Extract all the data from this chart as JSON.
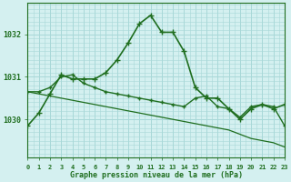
{
  "line1": [
    1029.85,
    1030.15,
    1030.6,
    1031.05,
    1030.95,
    1030.95,
    1030.95,
    1031.1,
    1031.4,
    1031.8,
    1032.25,
    1032.45,
    1032.05,
    1032.05,
    1031.6,
    1030.75,
    1030.5,
    1030.5,
    1030.25,
    1030.0,
    1030.25,
    1030.35,
    1030.25,
    1030.35
  ],
  "line2": [
    1030.65,
    1030.65,
    1030.75,
    1031.0,
    1031.05,
    1030.85,
    1030.75,
    1030.65,
    1030.6,
    1030.55,
    1030.5,
    1030.45,
    1030.4,
    1030.35,
    1030.3,
    1030.5,
    1030.55,
    1030.3,
    1030.25,
    1030.05,
    1030.3,
    1030.35,
    1030.3,
    1029.85
  ],
  "line3": [
    1030.65,
    1030.6,
    1030.55,
    1030.5,
    1030.45,
    1030.4,
    1030.35,
    1030.3,
    1030.25,
    1030.2,
    1030.15,
    1030.1,
    1030.05,
    1030.0,
    1029.95,
    1029.9,
    1029.85,
    1029.8,
    1029.75,
    1029.65,
    1029.55,
    1029.5,
    1029.45,
    1029.35
  ],
  "line_color": "#1f6e1f",
  "bg_color": "#d4f0f0",
  "grid_color": "#a8d8d8",
  "label_color": "#1f6e1f",
  "title": "Graphe pression niveau de la mer (hPa)",
  "yticks": [
    1030,
    1031,
    1032
  ],
  "ylim": [
    1029.1,
    1032.75
  ],
  "xlim": [
    0,
    23
  ]
}
